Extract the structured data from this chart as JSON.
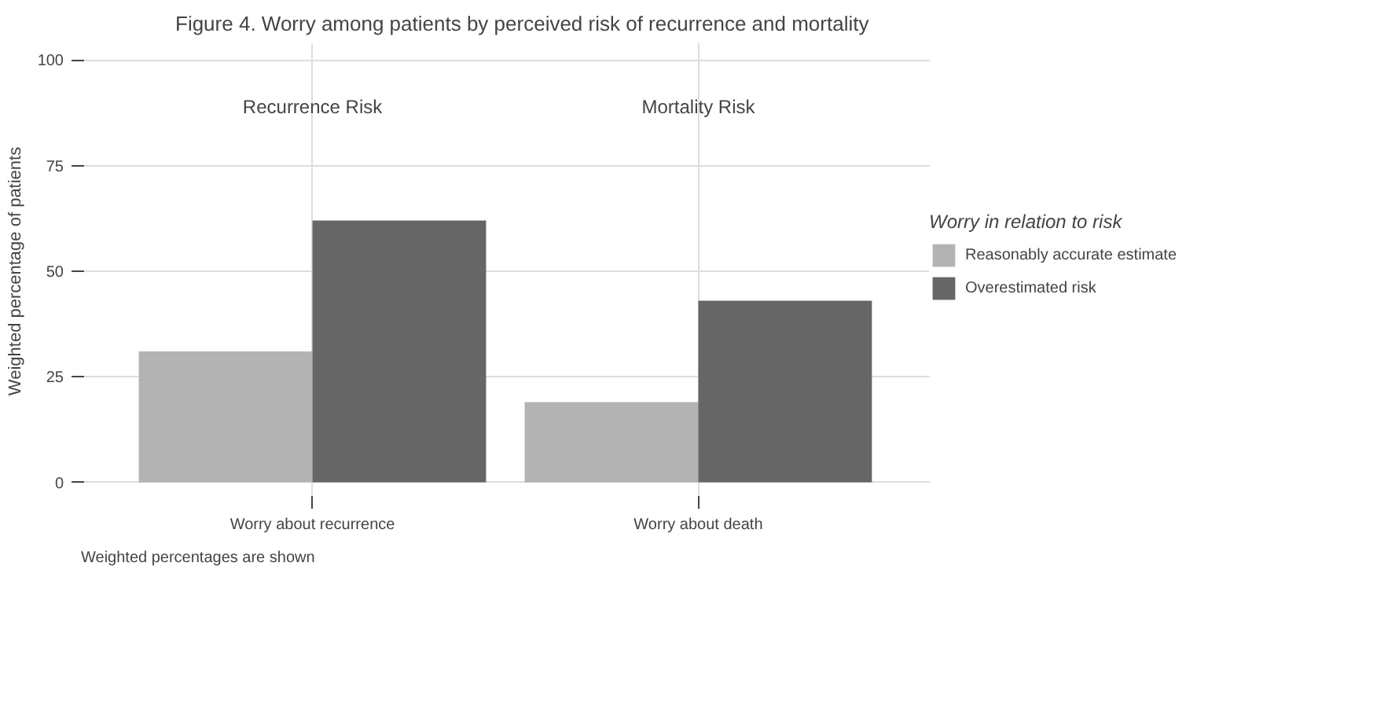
{
  "chart_data": {
    "type": "bar",
    "title": "Figure 4. Worry among patients by perceived risk of recurrence and mortality",
    "ylabel": "Weighted percentage of patients",
    "categories": [
      "Worry about recurrence",
      "Worry about death"
    ],
    "series": [
      {
        "name": "Reasonably accurate estimate",
        "color": "#b3b3b3",
        "values": [
          31,
          19
        ]
      },
      {
        "name": "Overestimated risk",
        "color": "#666666",
        "values": [
          62,
          43
        ]
      }
    ],
    "ylim": [
      -4,
      104
    ],
    "yticks": [
      0,
      25,
      50,
      75,
      100
    ],
    "legend_title": "Worry in relation to risk",
    "legend": "right",
    "grid": true,
    "annotations": [
      "Recurrence Risk",
      "Mortality Risk",
      "Weighted percentages are shown"
    ]
  }
}
